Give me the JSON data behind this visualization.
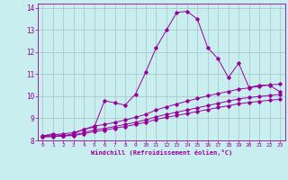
{
  "xlabel": "Windchill (Refroidissement éolien,°C)",
  "bg_color": "#c8eef0",
  "line_color": "#990099",
  "grid_color": "#b0c8cc",
  "xlim": [
    -0.5,
    23.5
  ],
  "ylim": [
    8,
    14.2
  ],
  "xticks": [
    0,
    1,
    2,
    3,
    4,
    5,
    6,
    7,
    8,
    9,
    10,
    11,
    12,
    13,
    14,
    15,
    16,
    17,
    18,
    19,
    20,
    21,
    22,
    23
  ],
  "yticks": [
    8,
    9,
    10,
    11,
    12,
    13,
    14
  ],
  "curve1_x": [
    0,
    1,
    2,
    3,
    4,
    5,
    6,
    7,
    8,
    9,
    10,
    11,
    12,
    13,
    14,
    15,
    16,
    17,
    18,
    19,
    20,
    21,
    22,
    23
  ],
  "curve1_y": [
    8.2,
    8.3,
    8.2,
    8.3,
    8.5,
    8.6,
    9.8,
    9.7,
    9.6,
    10.1,
    11.1,
    12.2,
    13.0,
    13.8,
    13.85,
    13.5,
    12.2,
    11.7,
    10.85,
    11.5,
    10.4,
    10.5,
    10.5,
    10.2
  ],
  "curve2_x": [
    0,
    1,
    2,
    3,
    4,
    5,
    6,
    7,
    8,
    9,
    10,
    11,
    12,
    13,
    14,
    15,
    16,
    17,
    18,
    19,
    20,
    21,
    22,
    23
  ],
  "curve2_y": [
    8.2,
    8.25,
    8.3,
    8.35,
    8.5,
    8.65,
    8.72,
    8.82,
    8.92,
    9.05,
    9.18,
    9.38,
    9.52,
    9.65,
    9.78,
    9.9,
    10.02,
    10.12,
    10.22,
    10.32,
    10.38,
    10.45,
    10.52,
    10.55
  ],
  "curve3_x": [
    0,
    1,
    2,
    3,
    4,
    5,
    6,
    7,
    8,
    9,
    10,
    11,
    12,
    13,
    14,
    15,
    16,
    17,
    18,
    19,
    20,
    21,
    22,
    23
  ],
  "curve3_y": [
    8.18,
    8.2,
    8.22,
    8.25,
    8.35,
    8.48,
    8.54,
    8.63,
    8.72,
    8.82,
    8.93,
    9.07,
    9.18,
    9.28,
    9.38,
    9.48,
    9.58,
    9.68,
    9.78,
    9.88,
    9.94,
    9.99,
    10.04,
    10.08
  ],
  "curve4_x": [
    0,
    1,
    2,
    3,
    4,
    5,
    6,
    7,
    8,
    9,
    10,
    11,
    12,
    13,
    14,
    15,
    16,
    17,
    18,
    19,
    20,
    21,
    22,
    23
  ],
  "curve4_y": [
    8.15,
    8.17,
    8.2,
    8.22,
    8.3,
    8.4,
    8.46,
    8.55,
    8.63,
    8.72,
    8.82,
    8.95,
    9.05,
    9.13,
    9.22,
    9.31,
    9.4,
    9.49,
    9.57,
    9.66,
    9.72,
    9.77,
    9.82,
    9.86
  ]
}
